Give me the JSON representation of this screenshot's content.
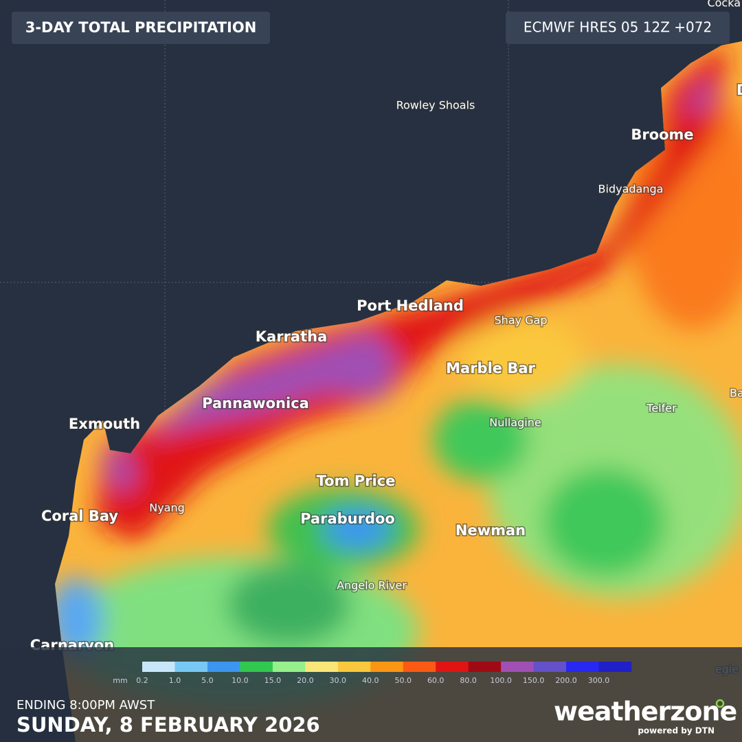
{
  "header": {
    "title": "3-DAY TOTAL PRECIPITATION",
    "model": "ECMWF HRES 05 12Z +072"
  },
  "places": [
    "Rowley Shoals",
    "Broome",
    "Bidyadanga",
    "Port Hedland",
    "Shay Gap",
    "Karratha",
    "Marble Bar",
    "Pannawonica",
    "Telfer",
    "Exmouth",
    "Nullagine",
    "Tom Price",
    "Nyang",
    "Coral Bay",
    "Paraburdoo",
    "Newman",
    "Angelo River",
    "Carnarvon",
    "Cocka",
    "D",
    "Ba",
    "egie"
  ],
  "legend": {
    "unit": "mm",
    "labels": [
      "0.2",
      "1.0",
      "5.0",
      "10.0",
      "15.0",
      "20.0",
      "30.0",
      "40.0",
      "50.0",
      "60.0",
      "80.0",
      "100.0",
      "150.0",
      "200.0",
      "300.0"
    ],
    "colors": [
      "#c8e6fa",
      "#78c8f5",
      "#3c96f0",
      "#32c850",
      "#96f08c",
      "#fae678",
      "#fac83c",
      "#fa9614",
      "#fa5a14",
      "#e11414",
      "#a00a14",
      "#a050b4",
      "#6450c8",
      "#2828f0",
      "#2020c8"
    ]
  },
  "footer": {
    "ending": "ENDING 8:00PM AWST",
    "date": "SUNDAY, 8 FEBRUARY 2026"
  },
  "logo": {
    "name": "weatherzone",
    "tagline": "powered by DTN"
  }
}
